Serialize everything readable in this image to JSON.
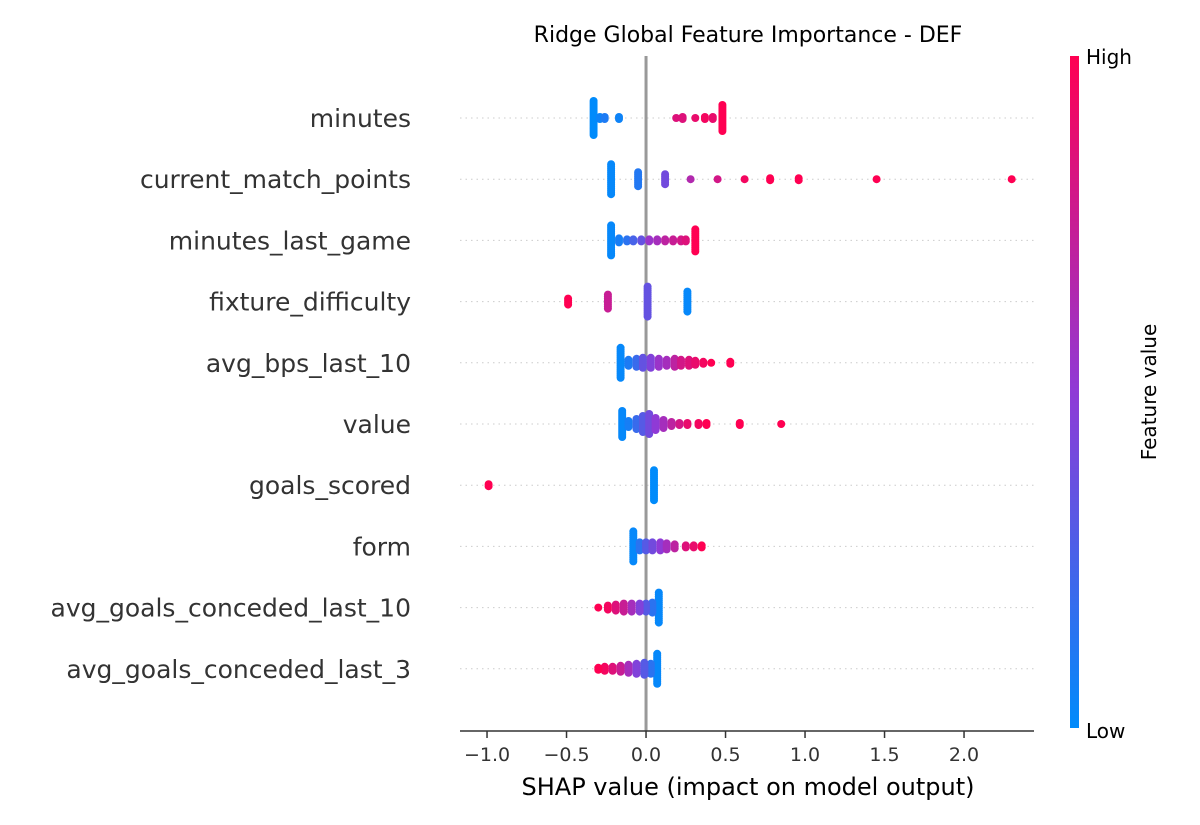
{
  "chart_data": {
    "type": "scatter",
    "title": "Ridge Global Feature Importance - DEF",
    "xlabel": "SHAP value (impact on model output)",
    "xlim": [
      -1.17,
      2.44
    ],
    "xticks": [
      "−1.0",
      "−0.5",
      "0.0",
      "0.5",
      "1.0",
      "1.5",
      "2.0"
    ],
    "xtick_values": [
      -1.0,
      -0.5,
      0.0,
      0.5,
      1.0,
      1.5,
      2.0
    ],
    "colorbar": {
      "label": "Feature value",
      "high": "High",
      "low": "Low",
      "low_color": "#008bfb",
      "high_color": "#ff0052",
      "mid_color": "#8f3ad6"
    },
    "features": [
      {
        "name": "minutes",
        "points": [
          {
            "x": -0.33,
            "v": 0.0,
            "n": 18
          },
          {
            "x": -0.29,
            "v": 0.05,
            "n": 2
          },
          {
            "x": -0.26,
            "v": 0.1,
            "n": 2
          },
          {
            "x": -0.17,
            "v": 0.05,
            "n": 2
          },
          {
            "x": 0.19,
            "v": 0.85,
            "n": 1
          },
          {
            "x": 0.23,
            "v": 0.85,
            "n": 2
          },
          {
            "x": 0.31,
            "v": 0.9,
            "n": 1
          },
          {
            "x": 0.37,
            "v": 0.95,
            "n": 2
          },
          {
            "x": 0.42,
            "v": 0.9,
            "n": 2
          },
          {
            "x": 0.48,
            "v": 1.0,
            "n": 14
          }
        ]
      },
      {
        "name": "current_match_points",
        "points": [
          {
            "x": -0.22,
            "v": 0.02,
            "n": 16
          },
          {
            "x": -0.05,
            "v": 0.12,
            "n": 8
          },
          {
            "x": 0.12,
            "v": 0.4,
            "n": 6
          },
          {
            "x": 0.28,
            "v": 0.65,
            "n": 1
          },
          {
            "x": 0.45,
            "v": 0.8,
            "n": 1
          },
          {
            "x": 0.62,
            "v": 0.95,
            "n": 1
          },
          {
            "x": 0.78,
            "v": 1.0,
            "n": 2
          },
          {
            "x": 0.96,
            "v": 1.0,
            "n": 2
          },
          {
            "x": 1.45,
            "v": 1.0,
            "n": 1
          },
          {
            "x": 2.3,
            "v": 1.0,
            "n": 1
          }
        ]
      },
      {
        "name": "minutes_last_game",
        "points": [
          {
            "x": -0.22,
            "v": 0.02,
            "n": 16
          },
          {
            "x": -0.17,
            "v": 0.08,
            "n": 3
          },
          {
            "x": -0.12,
            "v": 0.15,
            "n": 2
          },
          {
            "x": -0.08,
            "v": 0.25,
            "n": 2
          },
          {
            "x": -0.03,
            "v": 0.35,
            "n": 2
          },
          {
            "x": 0.02,
            "v": 0.55,
            "n": 2
          },
          {
            "x": 0.07,
            "v": 0.6,
            "n": 2
          },
          {
            "x": 0.12,
            "v": 0.7,
            "n": 2
          },
          {
            "x": 0.17,
            "v": 0.75,
            "n": 2
          },
          {
            "x": 0.22,
            "v": 0.8,
            "n": 2
          },
          {
            "x": 0.25,
            "v": 0.85,
            "n": 2
          },
          {
            "x": 0.31,
            "v": 1.0,
            "n": 12
          }
        ]
      },
      {
        "name": "fixture_difficulty",
        "points": [
          {
            "x": -0.49,
            "v": 1.0,
            "n": 4
          },
          {
            "x": -0.24,
            "v": 0.75,
            "n": 8
          },
          {
            "x": 0.01,
            "v": 0.35,
            "n": 16
          },
          {
            "x": 0.26,
            "v": 0.02,
            "n": 11
          }
        ]
      },
      {
        "name": "avg_bps_last_10",
        "points": [
          {
            "x": -0.16,
            "v": 0.02,
            "n": 16
          },
          {
            "x": -0.11,
            "v": 0.1,
            "n": 4
          },
          {
            "x": -0.06,
            "v": 0.2,
            "n": 5
          },
          {
            "x": -0.02,
            "v": 0.35,
            "n": 6
          },
          {
            "x": 0.03,
            "v": 0.45,
            "n": 6
          },
          {
            "x": 0.08,
            "v": 0.55,
            "n": 5
          },
          {
            "x": 0.13,
            "v": 0.6,
            "n": 4
          },
          {
            "x": 0.18,
            "v": 0.7,
            "n": 5
          },
          {
            "x": 0.22,
            "v": 0.8,
            "n": 4
          },
          {
            "x": 0.27,
            "v": 0.85,
            "n": 4
          },
          {
            "x": 0.31,
            "v": 0.9,
            "n": 3
          },
          {
            "x": 0.36,
            "v": 0.95,
            "n": 2
          },
          {
            "x": 0.41,
            "v": 1.0,
            "n": 1
          },
          {
            "x": 0.53,
            "v": 1.0,
            "n": 2
          }
        ]
      },
      {
        "name": "value",
        "points": [
          {
            "x": -0.15,
            "v": 0.02,
            "n": 14
          },
          {
            "x": -0.11,
            "v": 0.08,
            "n": 4
          },
          {
            "x": -0.06,
            "v": 0.2,
            "n": 6
          },
          {
            "x": -0.02,
            "v": 0.3,
            "n": 9
          },
          {
            "x": 0.02,
            "v": 0.4,
            "n": 11
          },
          {
            "x": 0.06,
            "v": 0.5,
            "n": 7
          },
          {
            "x": 0.11,
            "v": 0.6,
            "n": 5
          },
          {
            "x": 0.16,
            "v": 0.7,
            "n": 3
          },
          {
            "x": 0.21,
            "v": 0.8,
            "n": 2
          },
          {
            "x": 0.26,
            "v": 0.9,
            "n": 2
          },
          {
            "x": 0.33,
            "v": 0.95,
            "n": 2
          },
          {
            "x": 0.38,
            "v": 1.0,
            "n": 2
          },
          {
            "x": 0.59,
            "v": 1.0,
            "n": 2
          },
          {
            "x": 0.85,
            "v": 1.0,
            "n": 1
          }
        ]
      },
      {
        "name": "goals_scored",
        "points": [
          {
            "x": -0.99,
            "v": 1.0,
            "n": 2
          },
          {
            "x": 0.05,
            "v": 0.0,
            "n": 16
          }
        ]
      },
      {
        "name": "form",
        "points": [
          {
            "x": -0.08,
            "v": 0.02,
            "n": 16
          },
          {
            "x": -0.04,
            "v": 0.15,
            "n": 5
          },
          {
            "x": 0.0,
            "v": 0.3,
            "n": 5
          },
          {
            "x": 0.04,
            "v": 0.4,
            "n": 5
          },
          {
            "x": 0.09,
            "v": 0.5,
            "n": 5
          },
          {
            "x": 0.13,
            "v": 0.6,
            "n": 4
          },
          {
            "x": 0.18,
            "v": 0.7,
            "n": 3
          },
          {
            "x": 0.25,
            "v": 0.85,
            "n": 2
          },
          {
            "x": 0.3,
            "v": 0.9,
            "n": 2
          },
          {
            "x": 0.35,
            "v": 1.0,
            "n": 2
          }
        ]
      },
      {
        "name": "avg_goals_conceded_last_10",
        "points": [
          {
            "x": 0.08,
            "v": 0.02,
            "n": 16
          },
          {
            "x": 0.04,
            "v": 0.15,
            "n": 6
          },
          {
            "x": 0.0,
            "v": 0.3,
            "n": 5
          },
          {
            "x": -0.04,
            "v": 0.45,
            "n": 5
          },
          {
            "x": -0.09,
            "v": 0.6,
            "n": 5
          },
          {
            "x": -0.14,
            "v": 0.75,
            "n": 5
          },
          {
            "x": -0.19,
            "v": 0.85,
            "n": 4
          },
          {
            "x": -0.24,
            "v": 0.95,
            "n": 3
          },
          {
            "x": -0.3,
            "v": 1.0,
            "n": 1
          }
        ]
      },
      {
        "name": "avg_goals_conceded_last_3",
        "points": [
          {
            "x": 0.07,
            "v": 0.02,
            "n": 16
          },
          {
            "x": 0.03,
            "v": 0.15,
            "n": 6
          },
          {
            "x": -0.01,
            "v": 0.3,
            "n": 7
          },
          {
            "x": -0.06,
            "v": 0.45,
            "n": 6
          },
          {
            "x": -0.11,
            "v": 0.6,
            "n": 5
          },
          {
            "x": -0.16,
            "v": 0.75,
            "n": 4
          },
          {
            "x": -0.21,
            "v": 0.85,
            "n": 3
          },
          {
            "x": -0.26,
            "v": 0.95,
            "n": 3
          },
          {
            "x": -0.3,
            "v": 1.0,
            "n": 2
          }
        ]
      }
    ]
  }
}
